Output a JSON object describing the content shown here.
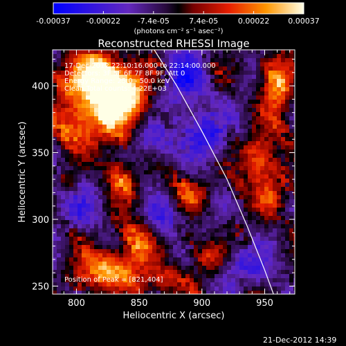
{
  "chart_data": {
    "type": "heatmap",
    "title": "Reconstructed RHESSI Image",
    "xlabel": "Heliocentric X (arcsec)",
    "ylabel": "Heliocentric Y (arcsec)",
    "xlim": [
      781,
      974
    ],
    "ylim": [
      244,
      427
    ],
    "xticks": [
      800,
      850,
      900,
      950
    ],
    "yticks": [
      250,
      300,
      350,
      400
    ],
    "colorbar": {
      "ticks": [
        "-0.00037",
        "-0.00022",
        "-7.4e-05",
        "7.4e-05",
        "0.00022",
        "0.00037"
      ],
      "unit_label": "(photons cm⁻² s⁻¹ asec⁻²)",
      "range": [
        -0.00037,
        0.00037
      ]
    },
    "annotations": {
      "time_range": "17-Dec-2012 22:10:16.000 to 22:14:00.000",
      "detectors": "Detectors: 3F 5F 6F 7F 8F 9F, Att 0",
      "energy_range": "Energy Range: 25.0 - 50.0 keV",
      "clean": "Clean    Total counts: 4.22E+03",
      "peak": "Position of Peak = [821,404]"
    },
    "limb_curve": [
      [
        862,
        427
      ],
      [
        880,
        400
      ],
      [
        900,
        366
      ],
      [
        920,
        330
      ],
      [
        936,
        295
      ],
      [
        950,
        262
      ],
      [
        957,
        244
      ]
    ],
    "bright_regions": [
      {
        "x": 815,
        "y": 405,
        "sx": 18,
        "sy": 14,
        "a": 1.0
      },
      {
        "x": 828,
        "y": 385,
        "sx": 16,
        "sy": 18,
        "a": 0.85
      },
      {
        "x": 800,
        "y": 370,
        "sx": 12,
        "sy": 14,
        "a": 0.55
      },
      {
        "x": 845,
        "y": 395,
        "sx": 12,
        "sy": 12,
        "a": 0.5
      },
      {
        "x": 825,
        "y": 262,
        "sx": 16,
        "sy": 10,
        "a": 0.95
      },
      {
        "x": 850,
        "y": 285,
        "sx": 10,
        "sy": 12,
        "a": 0.6
      },
      {
        "x": 945,
        "y": 345,
        "sx": 10,
        "sy": 14,
        "a": 0.75
      },
      {
        "x": 955,
        "y": 315,
        "sx": 8,
        "sy": 10,
        "a": 0.5
      },
      {
        "x": 960,
        "y": 400,
        "sx": 9,
        "sy": 18,
        "a": 0.7
      },
      {
        "x": 890,
        "y": 318,
        "sx": 10,
        "sy": 10,
        "a": 0.45
      },
      {
        "x": 870,
        "y": 255,
        "sx": 12,
        "sy": 8,
        "a": 0.5
      },
      {
        "x": 905,
        "y": 272,
        "sx": 10,
        "sy": 9,
        "a": 0.45
      },
      {
        "x": 835,
        "y": 330,
        "sx": 9,
        "sy": 12,
        "a": 0.5
      }
    ],
    "dark_regions": [
      {
        "x": 885,
        "y": 405,
        "sx": 12,
        "sy": 14,
        "a": 0.9
      },
      {
        "x": 905,
        "y": 365,
        "sx": 16,
        "sy": 12,
        "a": 0.8
      },
      {
        "x": 862,
        "y": 360,
        "sx": 12,
        "sy": 10,
        "a": 0.6
      },
      {
        "x": 870,
        "y": 300,
        "sx": 12,
        "sy": 10,
        "a": 0.6
      },
      {
        "x": 935,
        "y": 265,
        "sx": 14,
        "sy": 12,
        "a": 0.6
      },
      {
        "x": 800,
        "y": 310,
        "sx": 12,
        "sy": 12,
        "a": 0.5
      }
    ]
  },
  "footer": {
    "date": "21-Dec-2012 14:39"
  }
}
